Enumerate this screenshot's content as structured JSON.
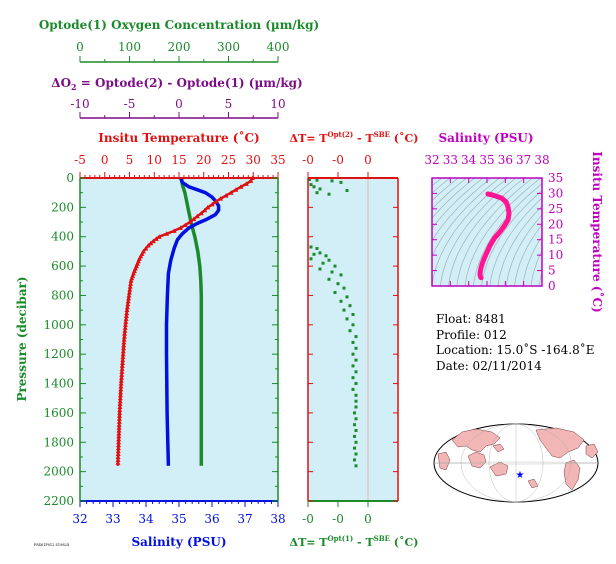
{
  "colors": {
    "oxygen": "#1a8a2a",
    "delta_o2": "#7b0d86",
    "temperature": "#e01010",
    "salinity": "#0010e0",
    "pressure_axis": "#1a8a2a",
    "ts_curve": "#ff1493",
    "ts_axis": "#c000c0",
    "panel_bg": "#d2eef7"
  },
  "labels": {
    "oxygen_title": "Optode(1) Oxygen Concentration (µm/kg)",
    "delta_o2_title": "ΔO₂ = Optode(2) - Optode(1)   (µm/kg)",
    "temp_title": "Insitu Temperature (˚C)",
    "salinity_title": "Salinity (PSU)",
    "pressure_title": "Pressure (decibar)",
    "dT_top_title": "ΔT= T^Opt(2) - T^SBE (˚C)",
    "dT_bottom_title": "ΔT= T^Opt(1) - T^SBE (˚C)",
    "ts_top_title": "Salinity (PSU)",
    "ts_right_title": "Insitu Temperature (˚C)",
    "footer_tiny": "F8481P012 S19824"
  },
  "info": {
    "float": "Float:  8481",
    "profile": "Profile:  012",
    "location": "Location:  15.0˚S  -164.8˚E",
    "date": "Date:  02/11/2014"
  },
  "chart_data": [
    {
      "type": "line",
      "name": "profile-panel",
      "ylabel": "Pressure (decibar)",
      "ylim": [
        2200,
        0
      ],
      "yticks": [
        0,
        200,
        400,
        600,
        800,
        1000,
        1200,
        1400,
        1600,
        1800,
        2000,
        2200
      ],
      "axes": {
        "oxygen": {
          "label": "Optode(1) Oxygen Concentration (µm/kg)",
          "lim": [
            0,
            400
          ],
          "ticks": [
            0,
            100,
            200,
            300,
            400
          ]
        },
        "delta_o2": {
          "label": "ΔO₂ = Optode(2) - Optode(1)   (µm/kg)",
          "lim": [
            -10,
            10
          ],
          "ticks": [
            -10,
            -5,
            0,
            5,
            10
          ]
        },
        "temperature": {
          "label": "Insitu Temperature (˚C)",
          "lim": [
            -5,
            35
          ],
          "ticks": [
            -5,
            0,
            5,
            10,
            15,
            20,
            25,
            30,
            35
          ]
        },
        "salinity": {
          "label": "Salinity (PSU)",
          "lim": [
            32,
            38
          ],
          "ticks": [
            32,
            33,
            34,
            35,
            36,
            37,
            38
          ]
        }
      },
      "series": [
        {
          "key": "temperature",
          "points": [
            [
              29.8,
              0
            ],
            [
              29.5,
              20
            ],
            [
              28.6,
              40
            ],
            [
              27.5,
              60
            ],
            [
              26.5,
              80
            ],
            [
              25.5,
              100
            ],
            [
              24.5,
              120
            ],
            [
              23.4,
              140
            ],
            [
              22.5,
              160
            ],
            [
              21.7,
              180
            ],
            [
              20.8,
              200
            ],
            [
              20.2,
              220
            ],
            [
              19.5,
              240
            ],
            [
              18.7,
              260
            ],
            [
              18.0,
              280
            ],
            [
              17.2,
              300
            ],
            [
              16.3,
              320
            ],
            [
              15.3,
              340
            ],
            [
              14.0,
              360
            ],
            [
              12.5,
              380
            ],
            [
              11.0,
              400
            ],
            [
              9.8,
              430
            ],
            [
              8.8,
              460
            ],
            [
              7.8,
              500
            ],
            [
              7.0,
              550
            ],
            [
              6.4,
              600
            ],
            [
              5.8,
              650
            ],
            [
              5.3,
              700
            ],
            [
              4.9,
              800
            ],
            [
              4.5,
              900
            ],
            [
              4.2,
              1000
            ],
            [
              3.9,
              1100
            ],
            [
              3.7,
              1200
            ],
            [
              3.5,
              1300
            ],
            [
              3.3,
              1400
            ],
            [
              3.15,
              1500
            ],
            [
              3.0,
              1600
            ],
            [
              2.9,
              1700
            ],
            [
              2.8,
              1800
            ],
            [
              2.7,
              1900
            ],
            [
              2.65,
              1960
            ]
          ]
        },
        {
          "key": "salinity",
          "points": [
            [
              35.05,
              0
            ],
            [
              35.1,
              30
            ],
            [
              35.3,
              60
            ],
            [
              35.55,
              80
            ],
            [
              35.8,
              100
            ],
            [
              36.0,
              130
            ],
            [
              36.12,
              160
            ],
            [
              36.2,
              190
            ],
            [
              36.2,
              220
            ],
            [
              36.1,
              250
            ],
            [
              35.85,
              280
            ],
            [
              35.55,
              310
            ],
            [
              35.3,
              340
            ],
            [
              35.1,
              380
            ],
            [
              34.95,
              420
            ],
            [
              34.85,
              480
            ],
            [
              34.75,
              560
            ],
            [
              34.68,
              650
            ],
            [
              34.65,
              800
            ],
            [
              34.62,
              1000
            ],
            [
              34.62,
              1200
            ],
            [
              34.63,
              1400
            ],
            [
              34.64,
              1600
            ],
            [
              34.66,
              1800
            ],
            [
              34.68,
              1960
            ]
          ]
        },
        {
          "key": "oxygen",
          "points": [
            [
              205,
              0
            ],
            [
              207,
              50
            ],
            [
              212,
              100
            ],
            [
              218,
              200
            ],
            [
              224,
              300
            ],
            [
              232,
              400
            ],
            [
              238,
              500
            ],
            [
              242,
              600
            ],
            [
              244,
              700
            ],
            [
              245,
              800
            ],
            [
              245,
              1000
            ],
            [
              245,
              1200
            ],
            [
              245,
              1400
            ],
            [
              245,
              1600
            ],
            [
              245,
              1800
            ],
            [
              245,
              1960
            ]
          ]
        }
      ]
    },
    {
      "type": "scatter",
      "name": "delta-t-panel",
      "xlabel_top": "ΔT= T^Opt(2) - T^SBE (˚C)",
      "xlabel_bottom": "ΔT= T^Opt(1) - T^SBE (˚C)",
      "xticks_top": [
        "-0",
        "-0",
        "0"
      ],
      "xticks_bottom": [
        "-0",
        "-0",
        "0"
      ],
      "xlim": [
        -0.2,
        0.1
      ],
      "ylim": [
        2200,
        0
      ],
      "points": [
        [
          -0.195,
          10
        ],
        [
          -0.17,
          15
        ],
        [
          -0.12,
          20
        ],
        [
          -0.09,
          30
        ],
        [
          -0.19,
          45
        ],
        [
          -0.18,
          60
        ],
        [
          -0.16,
          75
        ],
        [
          -0.07,
          85
        ],
        [
          -0.17,
          100
        ],
        [
          -0.13,
          110
        ],
        [
          -0.19,
          470
        ],
        [
          -0.17,
          480
        ],
        [
          -0.16,
          510
        ],
        [
          -0.18,
          520
        ],
        [
          -0.14,
          530
        ],
        [
          -0.19,
          550
        ],
        [
          -0.13,
          560
        ],
        [
          -0.15,
          580
        ],
        [
          -0.11,
          600
        ],
        [
          -0.16,
          620
        ],
        [
          -0.12,
          640
        ],
        [
          -0.09,
          660
        ],
        [
          -0.13,
          690
        ],
        [
          -0.1,
          720
        ],
        [
          -0.08,
          750
        ],
        [
          -0.11,
          780
        ],
        [
          -0.07,
          810
        ],
        [
          -0.09,
          840
        ],
        [
          -0.06,
          870
        ],
        [
          -0.08,
          900
        ],
        [
          -0.05,
          930
        ],
        [
          -0.07,
          960
        ],
        [
          -0.05,
          1000
        ],
        [
          -0.06,
          1040
        ],
        [
          -0.04,
          1080
        ],
        [
          -0.05,
          1120
        ],
        [
          -0.04,
          1160
        ],
        [
          -0.05,
          1200
        ],
        [
          -0.04,
          1240
        ],
        [
          -0.05,
          1280
        ],
        [
          -0.04,
          1320
        ],
        [
          -0.05,
          1360
        ],
        [
          -0.04,
          1400
        ],
        [
          -0.05,
          1440
        ],
        [
          -0.04,
          1480
        ],
        [
          -0.04,
          1520
        ],
        [
          -0.04,
          1560
        ],
        [
          -0.045,
          1600
        ],
        [
          -0.04,
          1640
        ],
        [
          -0.045,
          1680
        ],
        [
          -0.04,
          1720
        ],
        [
          -0.045,
          1760
        ],
        [
          -0.04,
          1800
        ],
        [
          -0.045,
          1840
        ],
        [
          -0.04,
          1880
        ],
        [
          -0.045,
          1920
        ],
        [
          -0.04,
          1960
        ]
      ]
    },
    {
      "type": "line",
      "name": "ts-diagram",
      "xlabel": "Salinity (PSU)",
      "ylabel": "Insitu Temperature (˚C)",
      "xlim": [
        32,
        38
      ],
      "ylim": [
        0,
        35
      ],
      "xticks": [
        32,
        33,
        34,
        35,
        36,
        37,
        38
      ],
      "yticks": [
        0,
        5,
        10,
        15,
        20,
        25,
        30,
        35
      ],
      "points": [
        [
          35.05,
          29.8
        ],
        [
          35.3,
          29.5
        ],
        [
          35.8,
          28.5
        ],
        [
          36.05,
          27.2
        ],
        [
          36.15,
          25.5
        ],
        [
          36.2,
          23.5
        ],
        [
          36.15,
          21.5
        ],
        [
          35.95,
          19.5
        ],
        [
          35.7,
          17.5
        ],
        [
          35.4,
          15.5
        ],
        [
          35.15,
          13.0
        ],
        [
          35.0,
          11.0
        ],
        [
          34.85,
          9.0
        ],
        [
          34.75,
          7.5
        ],
        [
          34.68,
          6.0
        ],
        [
          34.64,
          5.0
        ],
        [
          34.62,
          4.0
        ],
        [
          34.63,
          3.3
        ],
        [
          34.66,
          2.8
        ],
        [
          34.68,
          2.65
        ]
      ]
    }
  ]
}
